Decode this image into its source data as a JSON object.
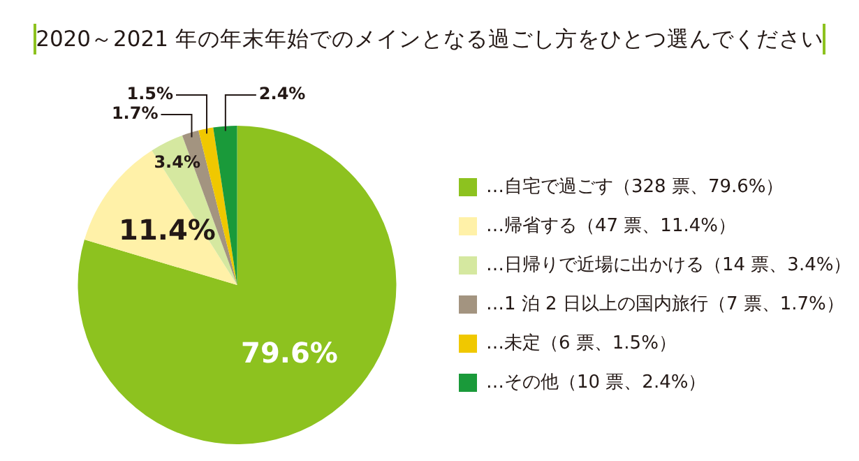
{
  "chart_data": {
    "type": "pie",
    "title": "2020～2021 年の年末年始でのメインとなる過ごし方をひとつ選んでください",
    "categories": [
      "…自宅で過ごす（328 票、79.6%）",
      "…帰省する（47 票、11.4%）",
      "…日帰りで近場に出かける（14 票、3.4%）",
      "…1 泊 2 日以上の国内旅行（7 票、1.7%）",
      "…未定（6 票、1.5%）",
      "…その他（10 票、2.4%）"
    ],
    "values": [
      79.6,
      11.4,
      3.4,
      1.7,
      1.5,
      2.4
    ],
    "colors": [
      "#8dc21f",
      "#fff1a8",
      "#d5e8a0",
      "#a39480",
      "#f0c800",
      "#1a9a3a"
    ],
    "value_labels": [
      "79.6%",
      "11.4%",
      "3.4%",
      "1.7%",
      "1.5%",
      "2.4%"
    ],
    "legend": "right"
  }
}
